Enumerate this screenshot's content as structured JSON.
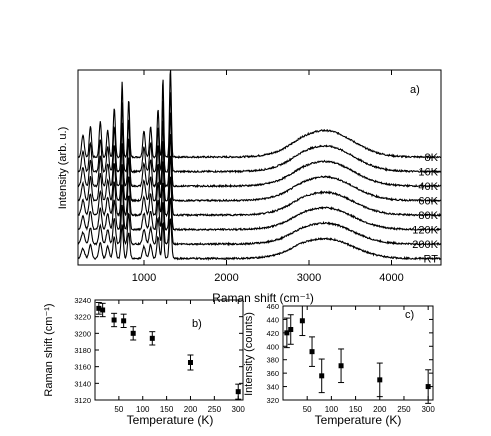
{
  "chart_data": [
    {
      "panel_label": "a)",
      "type": "line",
      "xlabel": "Raman shift (cm⁻¹)",
      "ylabel": "Intensity (arb. u.)",
      "xlim": [
        200,
        4600
      ],
      "xticks": [
        1000,
        2000,
        3000,
        4000
      ],
      "xtick_labels": [
        "1000",
        "2000",
        "3000",
        "4000"
      ],
      "yticks": [],
      "grid": false,
      "series": [
        {
          "name": "8K"
        },
        {
          "name": "16K"
        },
        {
          "name": "40K"
        },
        {
          "name": "60K"
        },
        {
          "name": "80K"
        },
        {
          "name": "120K"
        },
        {
          "name": "200K"
        },
        {
          "name": "RT"
        }
      ],
      "bands_cm": [
        260,
        350,
        470,
        560,
        640,
        735,
        815,
        1000,
        1080,
        1170,
        1230,
        1320
      ],
      "broad_band_center_cm": 3200
    },
    {
      "panel_label": "b)",
      "type": "scatter",
      "xlabel": "Temperature (K)",
      "ylabel": "Raman shift (cm⁻¹)",
      "xlim": [
        0,
        310
      ],
      "ylim": [
        3120,
        3240
      ],
      "xticks": [
        50,
        100,
        150,
        200,
        250,
        300
      ],
      "xtick_labels": [
        "50",
        "100",
        "150",
        "200",
        "250",
        "300"
      ],
      "yticks": [
        3120,
        3140,
        3160,
        3180,
        3200,
        3220,
        3240
      ],
      "ytick_labels": [
        "3120",
        "3140",
        "3160",
        "3180",
        "3200",
        "3220",
        "3240"
      ],
      "grid": false,
      "points": [
        {
          "x": 8,
          "y": 3230,
          "err": 7
        },
        {
          "x": 16,
          "y": 3228,
          "err": 8
        },
        {
          "x": 40,
          "y": 3216,
          "err": 8
        },
        {
          "x": 60,
          "y": 3215,
          "err": 8
        },
        {
          "x": 80,
          "y": 3200,
          "err": 8
        },
        {
          "x": 120,
          "y": 3194,
          "err": 8
        },
        {
          "x": 200,
          "y": 3165,
          "err": 9
        },
        {
          "x": 300,
          "y": 3130,
          "err": 9
        }
      ]
    },
    {
      "panel_label": "c)",
      "type": "scatter",
      "xlabel": "Temperature (K)",
      "ylabel": "Intensity (counts)",
      "xlim": [
        0,
        310
      ],
      "ylim": [
        320,
        460
      ],
      "xticks": [
        50,
        100,
        150,
        200,
        250,
        300
      ],
      "xtick_labels": [
        "50",
        "100",
        "150",
        "200",
        "250",
        "300"
      ],
      "yticks": [
        320,
        340,
        360,
        380,
        400,
        420,
        440,
        460
      ],
      "ytick_labels": [
        "320",
        "340",
        "360",
        "380",
        "400",
        "420",
        "440",
        "460"
      ],
      "grid": false,
      "points": [
        {
          "x": 8,
          "y": 420,
          "err": 22
        },
        {
          "x": 16,
          "y": 425,
          "err": 22
        },
        {
          "x": 40,
          "y": 438,
          "err": 22
        },
        {
          "x": 60,
          "y": 392,
          "err": 22
        },
        {
          "x": 80,
          "y": 356,
          "err": 25
        },
        {
          "x": 120,
          "y": 371,
          "err": 25
        },
        {
          "x": 200,
          "y": 350,
          "err": 25
        },
        {
          "x": 300,
          "y": 340,
          "err": 25
        }
      ]
    }
  ]
}
